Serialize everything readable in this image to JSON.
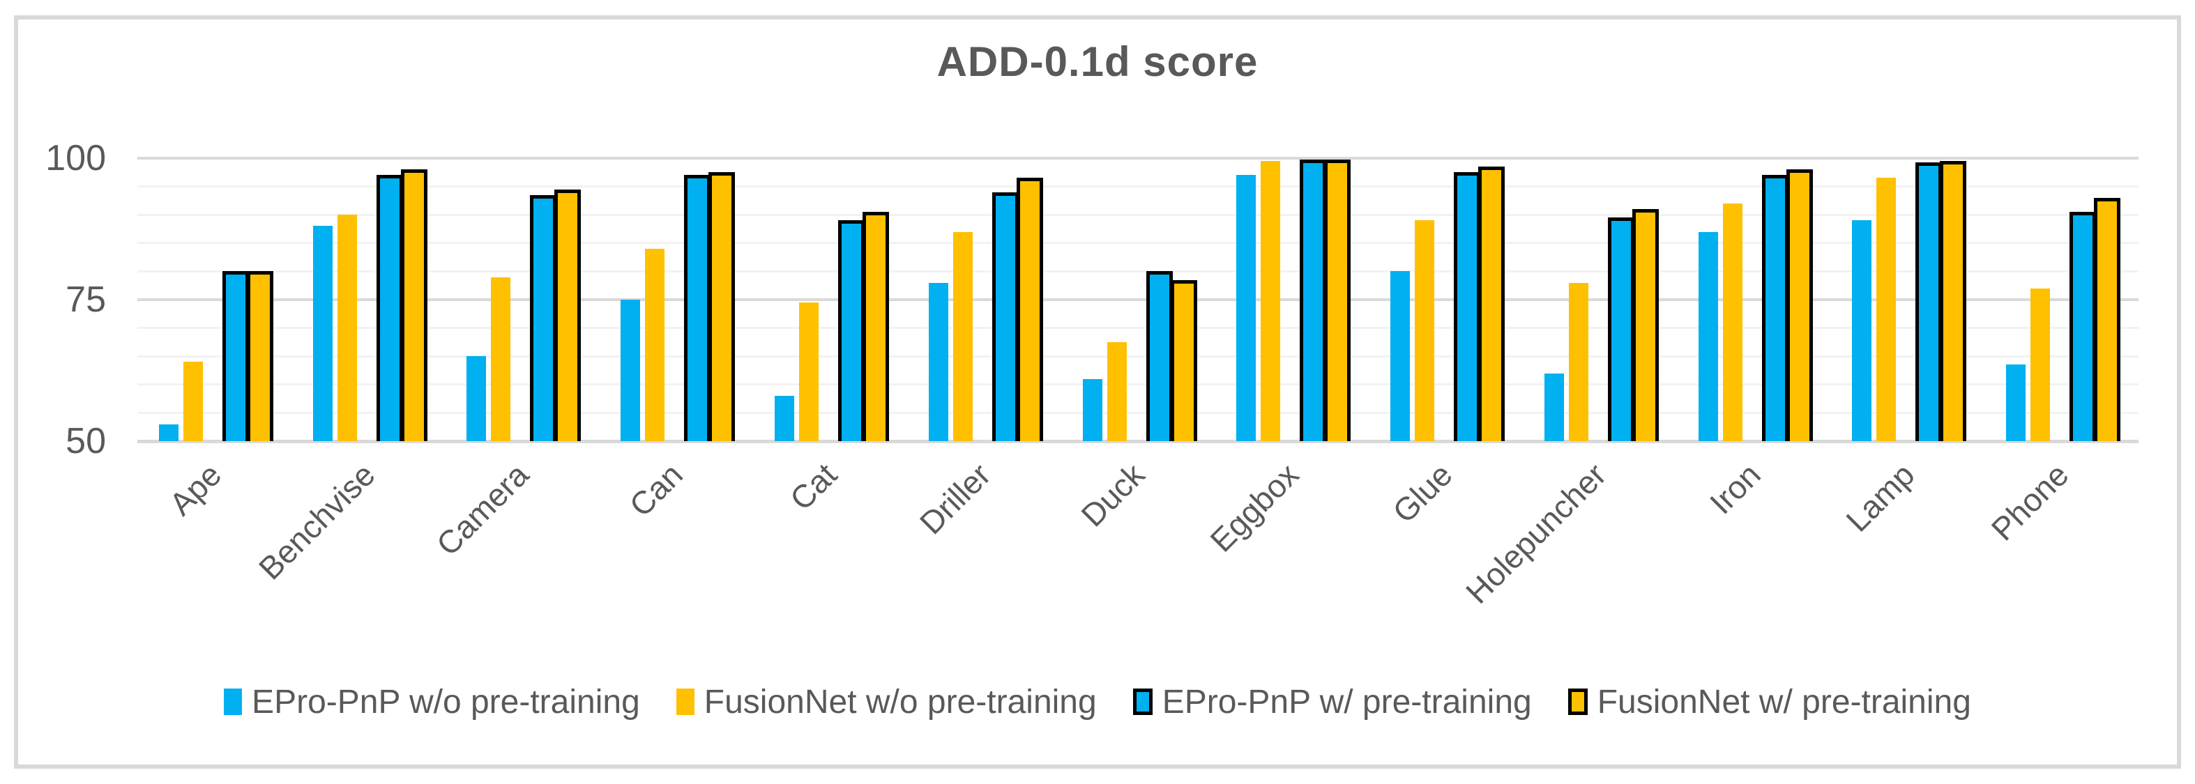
{
  "title": "ADD-0.1d score",
  "colors": {
    "series_blue": "#00B0F0",
    "series_yellow": "#FFC000",
    "bar_border": "#000000",
    "text": "#595959",
    "gridline_major": "#D9D9D9",
    "gridline_minor": "#F2F2F2",
    "frame_border": "#D9D9D9",
    "background": "#FFFFFF"
  },
  "chart_data": {
    "type": "bar",
    "title": "ADD-0.1d score",
    "xlabel": "",
    "ylabel": "",
    "ylim": [
      50,
      100
    ],
    "y_ticks": [
      100,
      75,
      50
    ],
    "minor_unit": 5,
    "major_unit": 25,
    "grid": "horizontal",
    "legend_position": "bottom",
    "categories": [
      "Ape",
      "Benchvise",
      "Camera",
      "Can",
      "Cat",
      "Driller",
      "Duck",
      "Eggbox",
      "Glue",
      "Holepuncher",
      "Iron",
      "Lamp",
      "Phone"
    ],
    "series": [
      {
        "name": "EPro-PnP w/o pre-training",
        "color": "#00B0F0",
        "bordered": false,
        "values": [
          53,
          88,
          65,
          75,
          58,
          78,
          61,
          97,
          80,
          62,
          87,
          89,
          63.5
        ]
      },
      {
        "name": "FusionNet w/o pre-training",
        "color": "#FFC000",
        "bordered": false,
        "values": [
          64,
          90,
          79,
          84,
          74.5,
          87,
          67.5,
          99.5,
          89,
          78,
          92,
          96.5,
          77
        ]
      },
      {
        "name": "EPro-PnP w/ pre-training",
        "color": "#00B0F0",
        "bordered": true,
        "values": [
          80,
          97,
          93.5,
          97,
          89,
          94,
          80,
          99.8,
          97.5,
          89.5,
          97,
          99.3,
          90.5
        ]
      },
      {
        "name": "FusionNet w/ pre-training",
        "color": "#FFC000",
        "bordered": true,
        "values": [
          80,
          98,
          94.5,
          97.5,
          90.5,
          96.5,
          78.5,
          99.8,
          98.5,
          91,
          98,
          99.5,
          93
        ]
      }
    ]
  }
}
